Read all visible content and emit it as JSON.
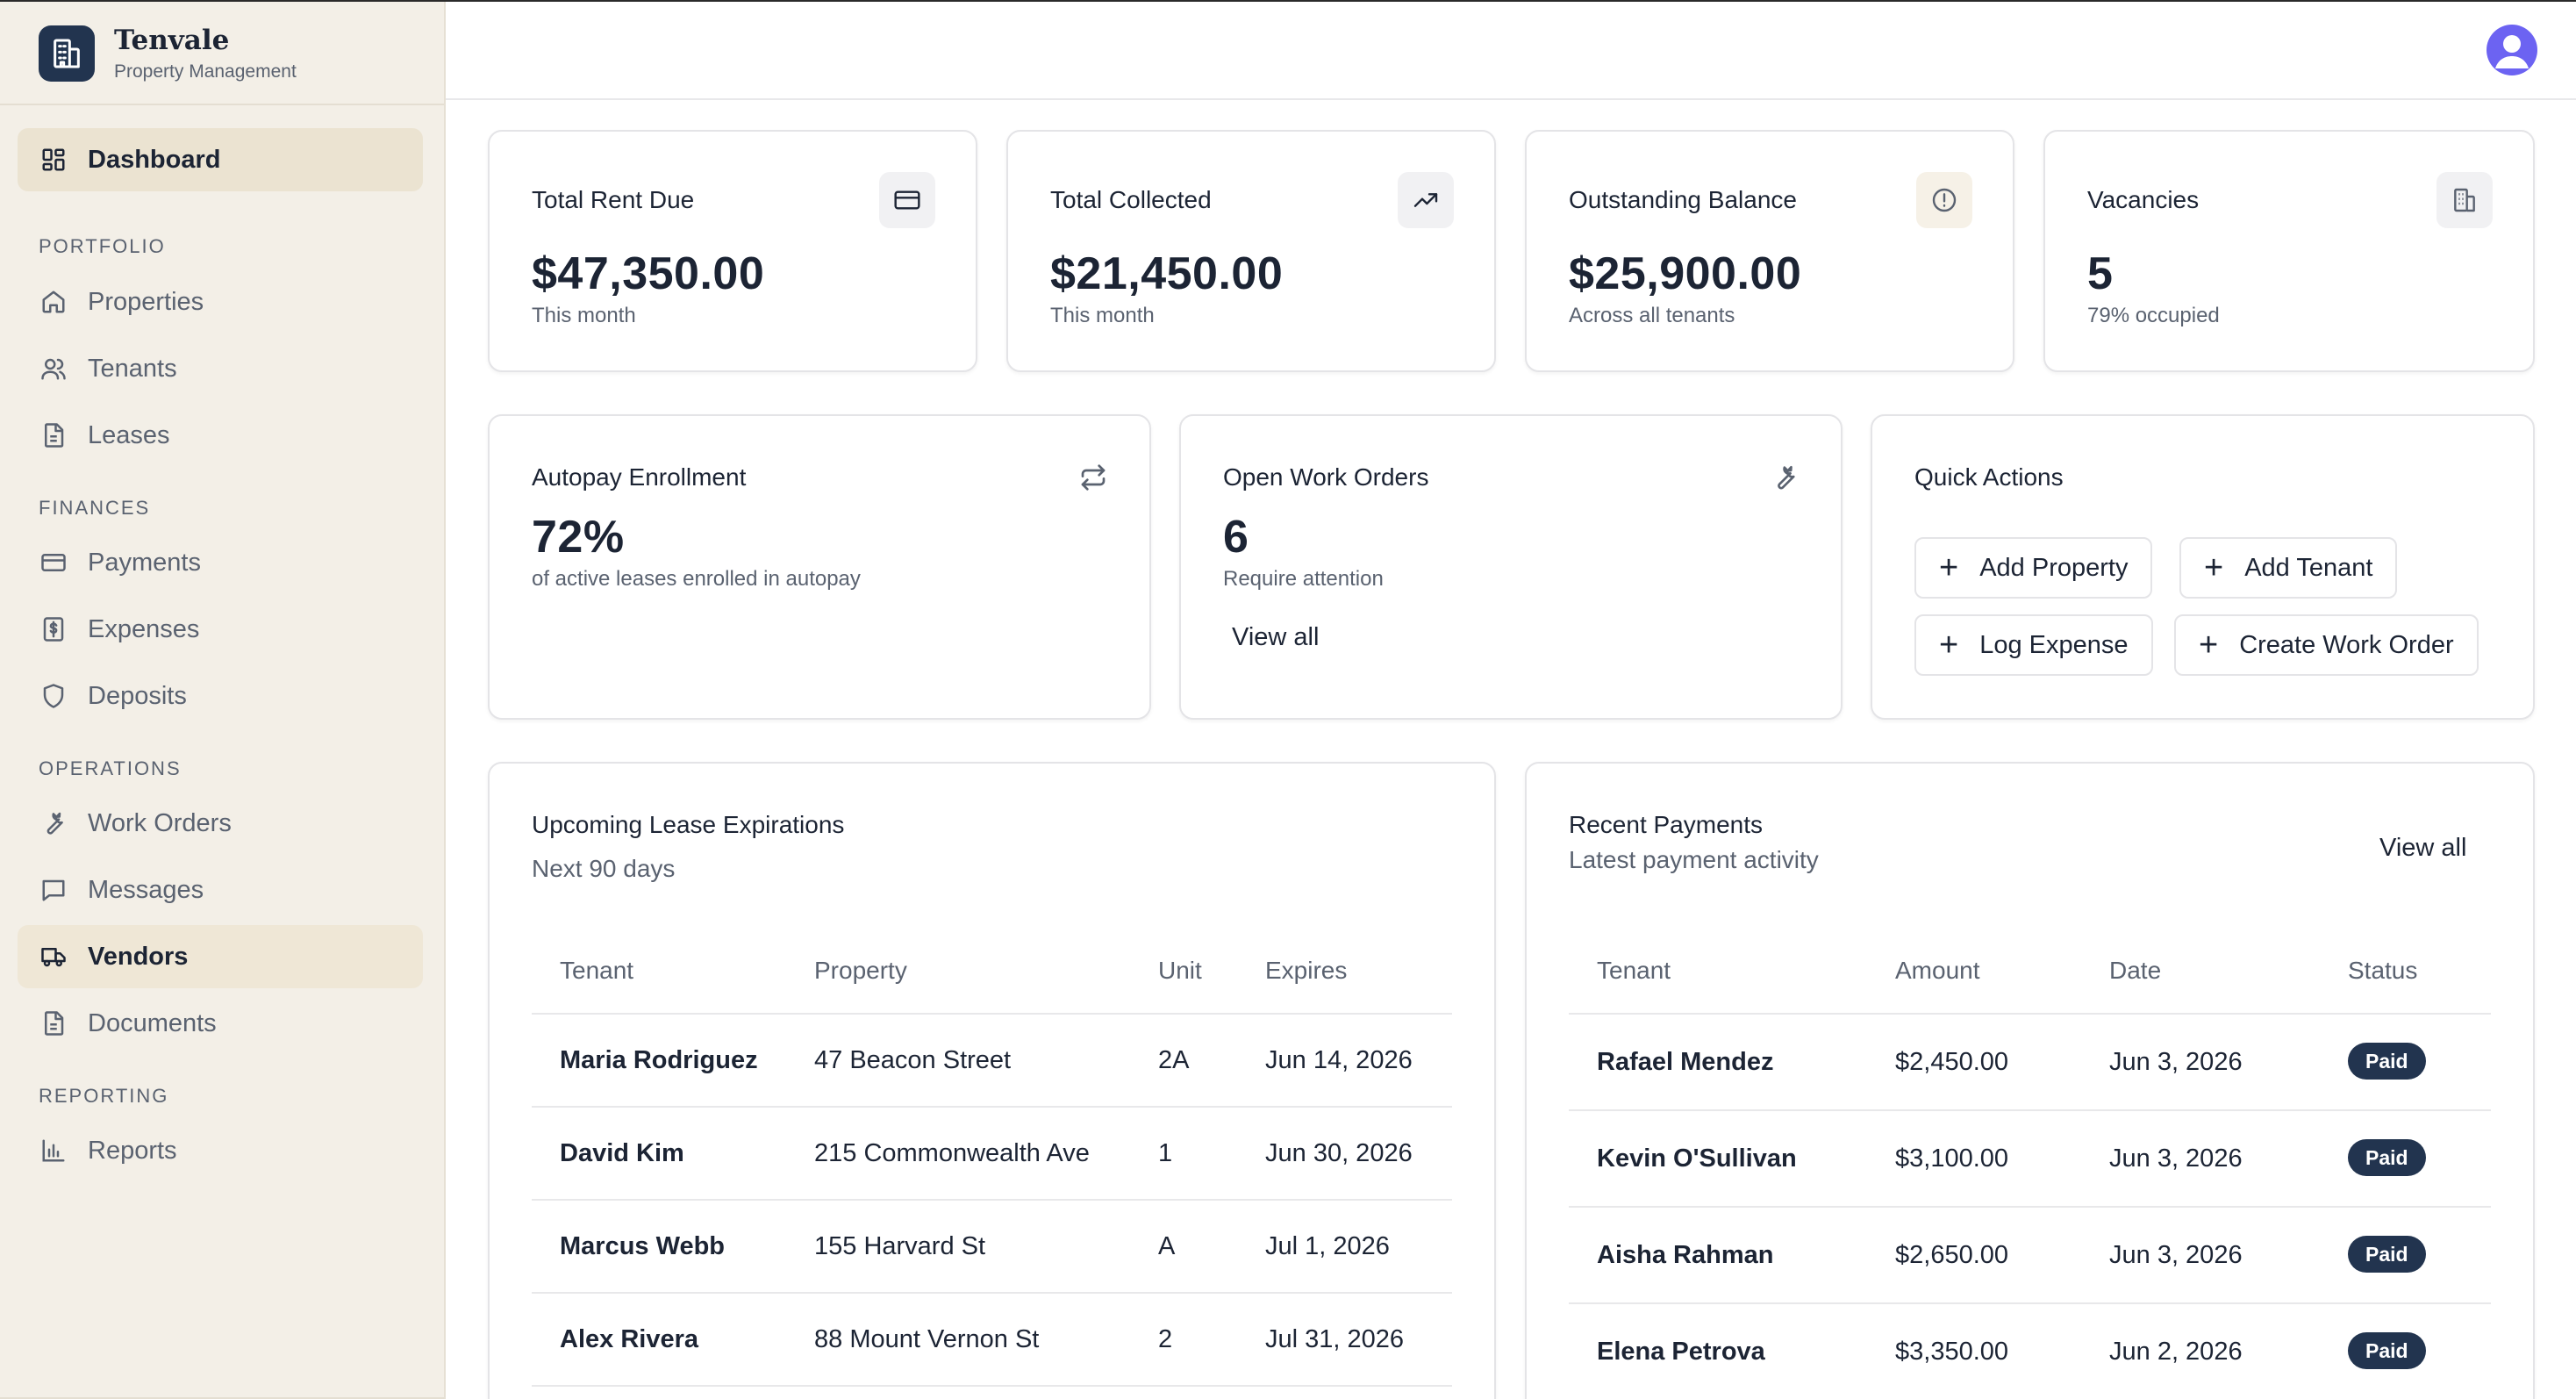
{
  "brand": {
    "name": "Tenvale",
    "subtitle": "Property Management"
  },
  "sidebar": {
    "dashboard": "Dashboard",
    "sections": {
      "portfolio": "PORTFOLIO",
      "finances": "FINANCES",
      "operations": "OPERATIONS",
      "reporting": "REPORTING"
    },
    "items": {
      "properties": "Properties",
      "tenants": "Tenants",
      "leases": "Leases",
      "payments": "Payments",
      "expenses": "Expenses",
      "deposits": "Deposits",
      "work_orders": "Work Orders",
      "messages": "Messages",
      "vendors": "Vendors",
      "documents": "Documents",
      "reports": "Reports"
    }
  },
  "stats": {
    "rent_due": {
      "title": "Total Rent Due",
      "value": "$47,350.00",
      "sub": "This month"
    },
    "collected": {
      "title": "Total Collected",
      "value": "$21,450.00",
      "sub": "This month"
    },
    "outstanding": {
      "title": "Outstanding Balance",
      "value": "$25,900.00",
      "sub": "Across all tenants"
    },
    "vacancies": {
      "title": "Vacancies",
      "value": "5",
      "sub": "79% occupied"
    }
  },
  "autopay": {
    "title": "Autopay Enrollment",
    "value": "72%",
    "sub": "of active leases enrolled in autopay"
  },
  "work_orders": {
    "title": "Open Work Orders",
    "value": "6",
    "sub": "Require attention",
    "link": "View all"
  },
  "quick_actions": {
    "title": "Quick Actions",
    "add_property": "Add Property",
    "add_tenant": "Add Tenant",
    "log_expense": "Log Expense",
    "create_work_order": "Create Work Order"
  },
  "leases": {
    "title": "Upcoming Lease Expirations",
    "subtitle": "Next 90 days",
    "headers": {
      "tenant": "Tenant",
      "property": "Property",
      "unit": "Unit",
      "expires": "Expires"
    },
    "rows": [
      {
        "tenant": "Maria Rodriguez",
        "property": "47 Beacon Street",
        "unit": "2A",
        "expires": "Jun 14, 2026"
      },
      {
        "tenant": "David Kim",
        "property": "215 Commonwealth Ave",
        "unit": "1",
        "expires": "Jun 30, 2026"
      },
      {
        "tenant": "Marcus Webb",
        "property": "155 Harvard St",
        "unit": "A",
        "expires": "Jul 1, 2026"
      },
      {
        "tenant": "Alex Rivera",
        "property": "88 Mount Vernon St",
        "unit": "2",
        "expires": "Jul 31, 2026"
      }
    ]
  },
  "payments": {
    "title": "Recent Payments",
    "subtitle": "Latest payment activity",
    "link": "View all",
    "headers": {
      "tenant": "Tenant",
      "amount": "Amount",
      "date": "Date",
      "status": "Status"
    },
    "rows": [
      {
        "tenant": "Rafael Mendez",
        "amount": "$2,450.00",
        "date": "Jun 3, 2026",
        "status": "Paid"
      },
      {
        "tenant": "Kevin O'Sullivan",
        "amount": "$3,100.00",
        "date": "Jun 3, 2026",
        "status": "Paid"
      },
      {
        "tenant": "Aisha Rahman",
        "amount": "$2,650.00",
        "date": "Jun 3, 2026",
        "status": "Paid"
      },
      {
        "tenant": "Elena Petrova",
        "amount": "$3,350.00",
        "date": "Jun 2, 2026",
        "status": "Paid"
      }
    ]
  }
}
